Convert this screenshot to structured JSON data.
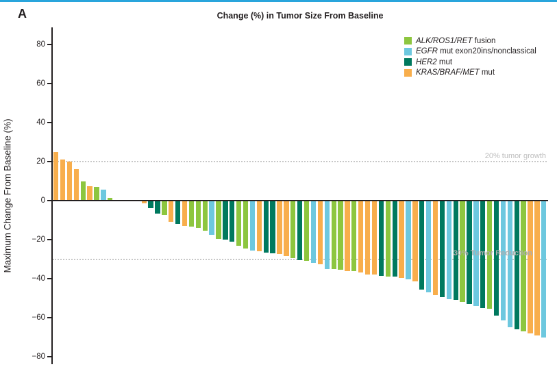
{
  "figure": {
    "panel_label": "A",
    "title": "Change (%) in Tumor Size From Baseline",
    "y_axis_label": "Maximum Change From Baseline (%)",
    "top_rule_color": "#29a5dc",
    "axis_color": "#231f20"
  },
  "reference_lines": {
    "growth": {
      "value": 20,
      "label": "20% tumor growth"
    },
    "reduction": {
      "value": -30,
      "label": "30% Tumor Reduction"
    }
  },
  "legend": {
    "items": [
      {
        "key": "alk",
        "genes": "ALK/ROS1/RET",
        "suffix": " fusion",
        "color": "#8dc63f"
      },
      {
        "key": "egfr",
        "genes": "EGFR",
        "suffix": " mut exon20ins/nonclassical",
        "color": "#6dc8df"
      },
      {
        "key": "her2",
        "genes": "HER2",
        "suffix": " mut",
        "color": "#00795e"
      },
      {
        "key": "kras",
        "genes": "KRAS/BRAF/MET",
        "suffix": " mut",
        "color": "#f8ae4c"
      }
    ]
  },
  "chart_data": {
    "type": "bar",
    "title": "Change (%) in Tumor Size From Baseline",
    "xlabel": "",
    "ylabel": "Maximum Change From Baseline (%)",
    "ylim": [
      -80,
      88
    ],
    "grid": false,
    "legend_position": "top-right",
    "yticks": [
      {
        "v": 80,
        "label": "80"
      },
      {
        "v": 60,
        "label": "60"
      },
      {
        "v": 40,
        "label": "40"
      },
      {
        "v": 20,
        "label": "20"
      },
      {
        "v": 0,
        "label": "0"
      },
      {
        "v": -20,
        "label": "−20"
      },
      {
        "v": -40,
        "label": "−40"
      },
      {
        "v": -60,
        "label": "−60"
      },
      {
        "v": -80,
        "label": "−80"
      }
    ],
    "bars": [
      {
        "group": "kras",
        "value": 25
      },
      {
        "group": "kras",
        "value": 21
      },
      {
        "group": "kras",
        "value": 20
      },
      {
        "group": "kras",
        "value": 16
      },
      {
        "group": "alk",
        "value": 10
      },
      {
        "group": "kras",
        "value": 7.5
      },
      {
        "group": "alk",
        "value": 7
      },
      {
        "group": "egfr",
        "value": 5.5
      },
      {
        "group": "alk",
        "value": 1.5
      },
      {
        "group": null,
        "value": 0
      },
      {
        "group": null,
        "value": 0
      },
      {
        "group": null,
        "value": 0
      },
      {
        "group": null,
        "value": 0
      },
      {
        "group": "kras",
        "value": -1.5
      },
      {
        "group": "her2",
        "value": -4
      },
      {
        "group": "her2",
        "value": -6.5
      },
      {
        "group": "alk",
        "value": -7.5
      },
      {
        "group": "kras",
        "value": -11
      },
      {
        "group": "her2",
        "value": -12
      },
      {
        "group": "kras",
        "value": -13
      },
      {
        "group": "alk",
        "value": -13.5
      },
      {
        "group": "alk",
        "value": -14
      },
      {
        "group": "alk",
        "value": -15.5
      },
      {
        "group": "egfr",
        "value": -17.5
      },
      {
        "group": "alk",
        "value": -19.5
      },
      {
        "group": "her2",
        "value": -20
      },
      {
        "group": "her2",
        "value": -21
      },
      {
        "group": "alk",
        "value": -23
      },
      {
        "group": "alk",
        "value": -24.5
      },
      {
        "group": "egfr",
        "value": -25.5
      },
      {
        "group": "kras",
        "value": -26
      },
      {
        "group": "her2",
        "value": -26.5
      },
      {
        "group": "her2",
        "value": -27
      },
      {
        "group": "kras",
        "value": -27.5
      },
      {
        "group": "kras",
        "value": -28.5
      },
      {
        "group": "alk",
        "value": -29.5
      },
      {
        "group": "her2",
        "value": -30.5
      },
      {
        "group": "alk",
        "value": -31
      },
      {
        "group": "egfr",
        "value": -32
      },
      {
        "group": "kras",
        "value": -32.5
      },
      {
        "group": "egfr",
        "value": -35
      },
      {
        "group": "alk",
        "value": -35
      },
      {
        "group": "alk",
        "value": -35.5
      },
      {
        "group": "kras",
        "value": -36
      },
      {
        "group": "alk",
        "value": -36
      },
      {
        "group": "kras",
        "value": -37
      },
      {
        "group": "kras",
        "value": -38
      },
      {
        "group": "kras",
        "value": -38
      },
      {
        "group": "her2",
        "value": -38.5
      },
      {
        "group": "alk",
        "value": -39
      },
      {
        "group": "her2",
        "value": -39
      },
      {
        "group": "kras",
        "value": -39.5
      },
      {
        "group": "egfr",
        "value": -40.5
      },
      {
        "group": "kras",
        "value": -41.5
      },
      {
        "group": "her2",
        "value": -45.5
      },
      {
        "group": "egfr",
        "value": -47
      },
      {
        "group": "kras",
        "value": -48.5
      },
      {
        "group": "her2",
        "value": -49.5
      },
      {
        "group": "egfr",
        "value": -50.5
      },
      {
        "group": "her2",
        "value": -51
      },
      {
        "group": "alk",
        "value": -52
      },
      {
        "group": "her2",
        "value": -53
      },
      {
        "group": "egfr",
        "value": -54
      },
      {
        "group": "her2",
        "value": -55
      },
      {
        "group": "alk",
        "value": -55.5
      },
      {
        "group": "her2",
        "value": -59
      },
      {
        "group": "egfr",
        "value": -61.5
      },
      {
        "group": "egfr",
        "value": -65
      },
      {
        "group": "her2",
        "value": -66
      },
      {
        "group": "alk",
        "value": -67
      },
      {
        "group": "kras",
        "value": -68
      },
      {
        "group": "kras",
        "value": -69
      },
      {
        "group": "egfr",
        "value": -70
      }
    ]
  }
}
